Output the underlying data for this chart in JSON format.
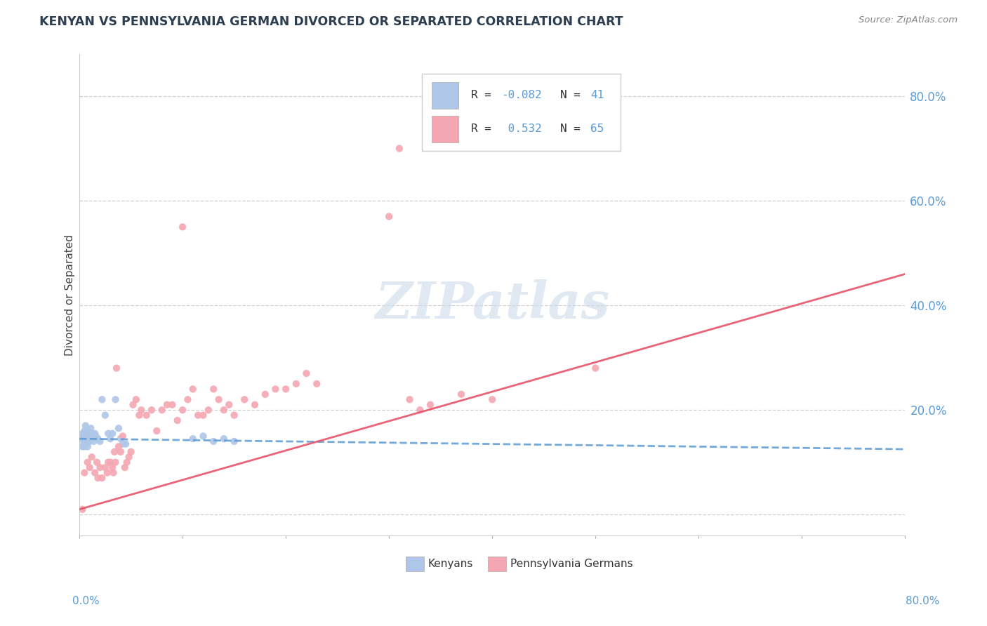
{
  "title": "KENYAN VS PENNSYLVANIA GERMAN DIVORCED OR SEPARATED CORRELATION CHART",
  "source": "Source: ZipAtlas.com",
  "ylabel": "Divorced or Separated",
  "xlim": [
    0.0,
    0.8
  ],
  "ylim": [
    -0.04,
    0.88
  ],
  "ytick_vals": [
    0.0,
    0.2,
    0.4,
    0.6,
    0.8
  ],
  "ytick_labels": [
    "",
    "20.0%",
    "40.0%",
    "60.0%",
    "80.0%"
  ],
  "kenyan_color": "#aec6e8",
  "penn_color": "#f4a7b2",
  "kenyan_line_color": "#5b9bd5",
  "penn_line_color": "#e8536a",
  "background_color": "#ffffff",
  "grid_color": "#d0d0d0",
  "kenyan_R": -0.082,
  "kenyan_N": 41,
  "penn_R": 0.532,
  "penn_N": 65,
  "kenyan_scatter": [
    [
      0.002,
      0.145
    ],
    [
      0.003,
      0.155
    ],
    [
      0.004,
      0.14
    ],
    [
      0.005,
      0.16
    ],
    [
      0.005,
      0.13
    ],
    [
      0.006,
      0.155
    ],
    [
      0.006,
      0.17
    ],
    [
      0.007,
      0.15
    ],
    [
      0.007,
      0.145
    ],
    [
      0.008,
      0.16
    ],
    [
      0.008,
      0.13
    ],
    [
      0.009,
      0.155
    ],
    [
      0.01,
      0.15
    ],
    [
      0.01,
      0.14
    ],
    [
      0.011,
      0.165
    ],
    [
      0.012,
      0.155
    ],
    [
      0.013,
      0.145
    ],
    [
      0.014,
      0.14
    ],
    [
      0.015,
      0.155
    ],
    [
      0.016,
      0.15
    ],
    [
      0.018,
      0.145
    ],
    [
      0.02,
      0.14
    ],
    [
      0.022,
      0.22
    ],
    [
      0.025,
      0.19
    ],
    [
      0.028,
      0.155
    ],
    [
      0.03,
      0.145
    ],
    [
      0.032,
      0.155
    ],
    [
      0.035,
      0.22
    ],
    [
      0.038,
      0.165
    ],
    [
      0.04,
      0.145
    ],
    [
      0.042,
      0.135
    ],
    [
      0.045,
      0.135
    ],
    [
      0.11,
      0.145
    ],
    [
      0.12,
      0.15
    ],
    [
      0.13,
      0.14
    ],
    [
      0.14,
      0.145
    ],
    [
      0.15,
      0.14
    ],
    [
      0.003,
      0.13
    ],
    [
      0.004,
      0.15
    ],
    [
      0.006,
      0.14
    ],
    [
      0.009,
      0.14
    ]
  ],
  "penn_scatter": [
    [
      0.003,
      0.01
    ],
    [
      0.005,
      0.08
    ],
    [
      0.008,
      0.1
    ],
    [
      0.01,
      0.09
    ],
    [
      0.012,
      0.11
    ],
    [
      0.015,
      0.08
    ],
    [
      0.017,
      0.1
    ],
    [
      0.018,
      0.07
    ],
    [
      0.02,
      0.09
    ],
    [
      0.022,
      0.07
    ],
    [
      0.025,
      0.09
    ],
    [
      0.027,
      0.08
    ],
    [
      0.028,
      0.1
    ],
    [
      0.03,
      0.1
    ],
    [
      0.032,
      0.09
    ],
    [
      0.033,
      0.08
    ],
    [
      0.034,
      0.12
    ],
    [
      0.035,
      0.1
    ],
    [
      0.036,
      0.28
    ],
    [
      0.038,
      0.13
    ],
    [
      0.04,
      0.12
    ],
    [
      0.042,
      0.15
    ],
    [
      0.044,
      0.09
    ],
    [
      0.046,
      0.1
    ],
    [
      0.048,
      0.11
    ],
    [
      0.05,
      0.12
    ],
    [
      0.052,
      0.21
    ],
    [
      0.055,
      0.22
    ],
    [
      0.058,
      0.19
    ],
    [
      0.06,
      0.2
    ],
    [
      0.065,
      0.19
    ],
    [
      0.07,
      0.2
    ],
    [
      0.075,
      0.16
    ],
    [
      0.08,
      0.2
    ],
    [
      0.085,
      0.21
    ],
    [
      0.09,
      0.21
    ],
    [
      0.095,
      0.18
    ],
    [
      0.1,
      0.2
    ],
    [
      0.105,
      0.22
    ],
    [
      0.11,
      0.24
    ],
    [
      0.115,
      0.19
    ],
    [
      0.12,
      0.19
    ],
    [
      0.125,
      0.2
    ],
    [
      0.13,
      0.24
    ],
    [
      0.135,
      0.22
    ],
    [
      0.14,
      0.2
    ],
    [
      0.145,
      0.21
    ],
    [
      0.15,
      0.19
    ],
    [
      0.16,
      0.22
    ],
    [
      0.17,
      0.21
    ],
    [
      0.18,
      0.23
    ],
    [
      0.19,
      0.24
    ],
    [
      0.2,
      0.24
    ],
    [
      0.21,
      0.25
    ],
    [
      0.22,
      0.27
    ],
    [
      0.23,
      0.25
    ],
    [
      0.3,
      0.57
    ],
    [
      0.31,
      0.7
    ],
    [
      0.32,
      0.22
    ],
    [
      0.33,
      0.2
    ],
    [
      0.34,
      0.21
    ],
    [
      0.37,
      0.23
    ],
    [
      0.4,
      0.22
    ],
    [
      0.5,
      0.28
    ],
    [
      0.1,
      0.55
    ]
  ],
  "kenyan_line": [
    0.0,
    0.145,
    0.8,
    0.125
  ],
  "penn_line": [
    0.0,
    0.01,
    0.8,
    0.46
  ],
  "watermark": "ZIPatlas",
  "watermark_color": "#c8d8e8",
  "bottom_legend_labels": [
    "Kenyans",
    "Pennsylvania Germans"
  ]
}
